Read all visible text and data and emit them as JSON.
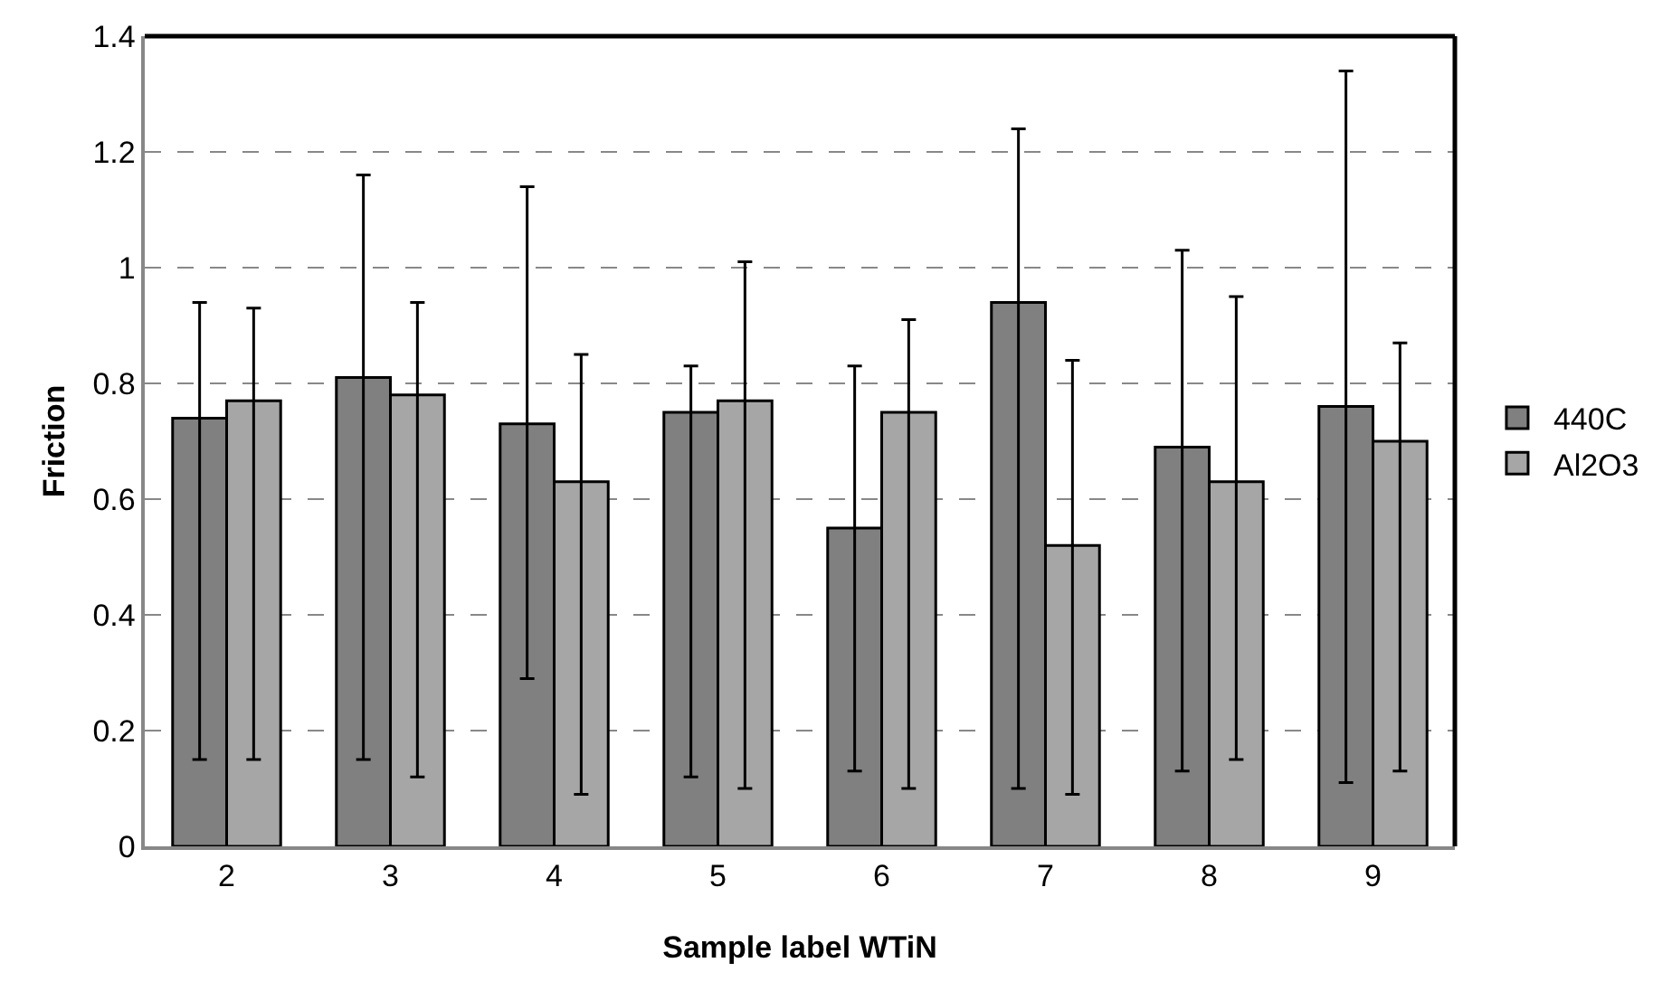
{
  "chart_data": {
    "type": "bar",
    "xlabel": "Sample label WTiN",
    "ylabel": "Friction",
    "categories": [
      "2",
      "3",
      "4",
      "5",
      "6",
      "7",
      "8",
      "9"
    ],
    "series": [
      {
        "name": "440C",
        "color": "#808080",
        "values": [
          0.74,
          0.81,
          0.73,
          0.75,
          0.55,
          0.94,
          0.69,
          0.76
        ],
        "errors": [
          [
            0.15,
            0.94
          ],
          [
            0.15,
            1.16
          ],
          [
            0.29,
            1.14
          ],
          [
            0.12,
            0.83
          ],
          [
            0.13,
            0.83
          ],
          [
            0.1,
            1.24
          ],
          [
            0.13,
            1.03
          ],
          [
            0.11,
            1.34
          ]
        ]
      },
      {
        "name": "Al2O3",
        "color": "#a6a6a6",
        "values": [
          0.77,
          0.78,
          0.63,
          0.77,
          0.75,
          0.52,
          0.63,
          0.7
        ],
        "errors": [
          [
            0.15,
            0.93
          ],
          [
            0.12,
            0.94
          ],
          [
            0.09,
            0.85
          ],
          [
            0.1,
            1.01
          ],
          [
            0.1,
            0.91
          ],
          [
            0.09,
            0.84
          ],
          [
            0.15,
            0.95
          ],
          [
            0.13,
            0.87
          ]
        ]
      }
    ],
    "ylim": [
      0,
      1.4
    ],
    "yticks": [
      0,
      0.2,
      0.4,
      0.6,
      0.8,
      1,
      1.2,
      1.4
    ],
    "grid": "y",
    "line_style": "dashed",
    "legend": "right"
  }
}
